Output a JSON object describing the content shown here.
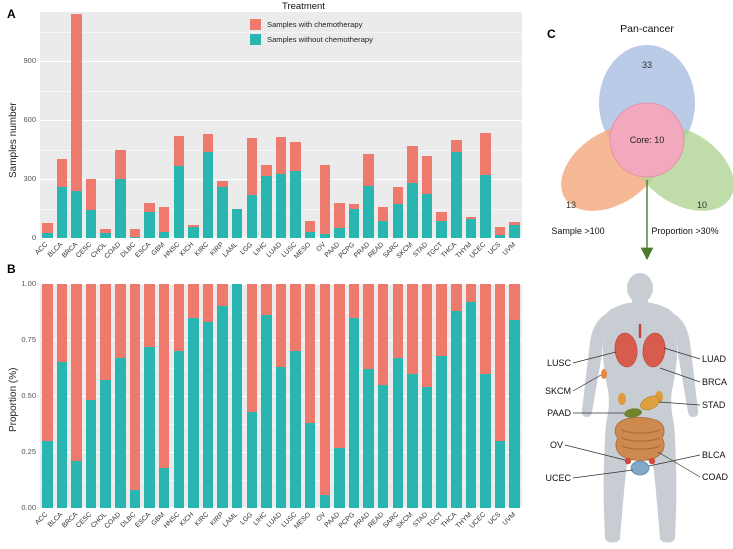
{
  "figure": {
    "panel_a_label": "A",
    "panel_b_label": "B",
    "panel_c_label": "C"
  },
  "colors": {
    "with_chemo": "#EE7A6E",
    "without_chemo": "#29B5B0",
    "panel_background": "#EBEBEB",
    "venn_blue": "#A9BEE2",
    "venn_orange": "#F2A77C",
    "venn_green": "#AFD394",
    "venn_pink": "#F2A9BD",
    "body_gray": "#C7CDD2"
  },
  "legend": {
    "title": "Treatment",
    "items": [
      {
        "label": "Samples with chemotherapy",
        "color": "#EE7A6E"
      },
      {
        "label": "Samples without chemotherapy",
        "color": "#29B5B0"
      }
    ]
  },
  "chart_data": [
    {
      "type": "bar",
      "stacked": true,
      "title": "",
      "xlabel": "",
      "ylabel": "Samples number",
      "ylim": [
        0,
        1150
      ],
      "yticks": [
        0,
        300,
        600,
        900
      ],
      "ytick_labels": [
        "0",
        "300",
        "600",
        "900"
      ],
      "grid": true,
      "legend_position": "top-center",
      "categories": [
        "ACC",
        "BLCA",
        "BRCA",
        "CESC",
        "CHOL",
        "COAD",
        "DLBC",
        "ESCA",
        "GBM",
        "HNSC",
        "KICH",
        "KIRC",
        "KIRP",
        "LAML",
        "LGG",
        "LIHC",
        "LUAD",
        "LUSC",
        "MESO",
        "OV",
        "PAAD",
        "PCPG",
        "PRAD",
        "READ",
        "SARC",
        "SKCM",
        "STAD",
        "TGCT",
        "THCA",
        "THYM",
        "UCEC",
        "UCS",
        "UVM"
      ],
      "series": [
        {
          "name": "Samples with chemotherapy",
          "values": [
            52,
            140,
            901,
            156,
            19,
            148,
            44,
            50,
            131,
            156,
            10,
            90,
            29,
            0,
            291,
            52,
            191,
            147,
            53,
            348,
            131,
            26,
            163,
            72,
            86,
            188,
            191,
            42,
            60,
            8,
            214,
            38,
            13
          ]
        },
        {
          "name": "Samples without chemotherapy",
          "values": [
            23,
            260,
            239,
            144,
            26,
            302,
            4,
            130,
            29,
            364,
            55,
            440,
            261,
            150,
            219,
            318,
            324,
            343,
            32,
            22,
            49,
            149,
            267,
            88,
            174,
            282,
            224,
            88,
            440,
            97,
            321,
            17,
            67
          ]
        }
      ]
    },
    {
      "type": "bar",
      "stacked": true,
      "normalized": true,
      "title": "",
      "xlabel": "",
      "ylabel": "Proportion (%)",
      "ylim": [
        0,
        1
      ],
      "yticks": [
        0,
        0.25,
        0.5,
        0.75,
        1
      ],
      "ytick_labels": [
        "0.00",
        "0.25",
        "0.50",
        "0.75",
        "1.00"
      ],
      "grid": true,
      "categories": [
        "ACC",
        "BLCA",
        "BRCA",
        "CESC",
        "CHOL",
        "COAD",
        "DLBC",
        "ESCA",
        "GBM",
        "HNSC",
        "KICH",
        "KIRC",
        "KIRP",
        "LAML",
        "LGG",
        "LIHC",
        "LUAD",
        "LUSC",
        "MESO",
        "OV",
        "PAAD",
        "PCPG",
        "PRAD",
        "READ",
        "SARC",
        "SKCM",
        "STAD",
        "TGCT",
        "THCA",
        "THYM",
        "UCEC",
        "UCS",
        "UVM"
      ],
      "series": [
        {
          "name": "Samples with chemotherapy",
          "values": [
            0.7,
            0.35,
            0.79,
            0.52,
            0.43,
            0.33,
            0.92,
            0.28,
            0.82,
            0.3,
            0.15,
            0.17,
            0.1,
            0.0,
            0.57,
            0.14,
            0.37,
            0.3,
            0.62,
            0.94,
            0.73,
            0.15,
            0.38,
            0.45,
            0.33,
            0.4,
            0.46,
            0.32,
            0.12,
            0.08,
            0.4,
            0.7,
            0.16
          ]
        },
        {
          "name": "Samples without chemotherapy",
          "values": [
            0.3,
            0.65,
            0.21,
            0.48,
            0.57,
            0.67,
            0.08,
            0.72,
            0.18,
            0.7,
            0.85,
            0.83,
            0.9,
            1.0,
            0.43,
            0.86,
            0.63,
            0.7,
            0.38,
            0.06,
            0.27,
            0.85,
            0.62,
            0.55,
            0.67,
            0.6,
            0.54,
            0.68,
            0.88,
            0.92,
            0.6,
            0.3,
            0.84
          ]
        }
      ]
    }
  ],
  "venn": {
    "pan_cancer_label": "Pan-cancer",
    "pan_cancer_count": "33",
    "sample_count": "13",
    "proportion_count": "10",
    "core_label": "Core: 10",
    "sample_label": "Sample >100",
    "proportion_label": "Proportion >30%"
  },
  "body": {
    "left": [
      "LUSC",
      "SKCM",
      "PAAD",
      "OV",
      "UCEC"
    ],
    "right": [
      "LUAD",
      "BRCA",
      "STAD",
      "BLCA",
      "COAD"
    ]
  }
}
